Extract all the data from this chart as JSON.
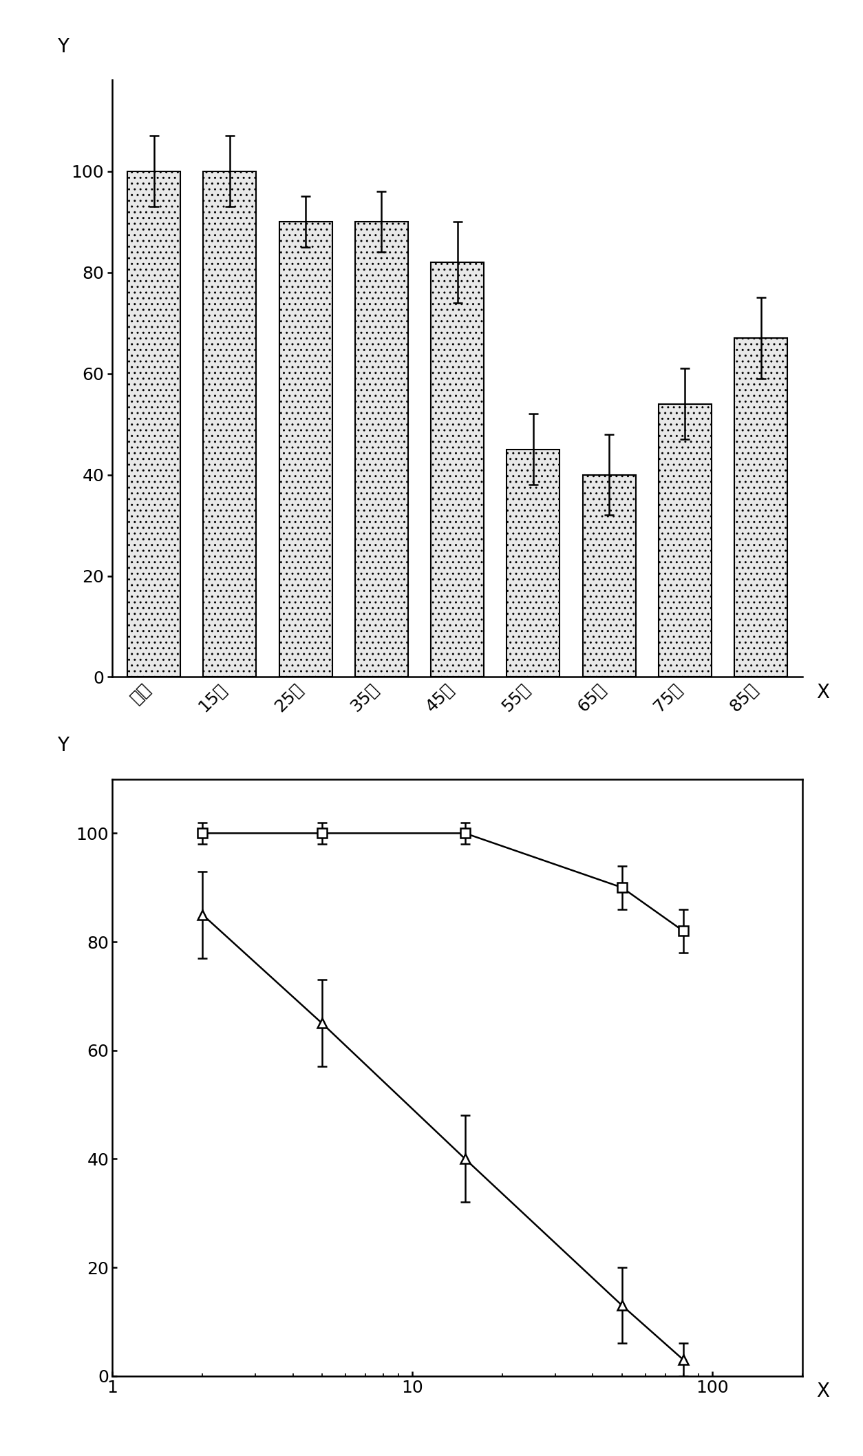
{
  "bar_categories": [
    "对照",
    "15履",
    "25履",
    "35履",
    "45履",
    "55履",
    "65履",
    "75履",
    "85履"
  ],
  "bar_values": [
    100,
    100,
    90,
    90,
    82,
    45,
    40,
    54,
    67
  ],
  "bar_errors": [
    7,
    7,
    5,
    6,
    8,
    7,
    8,
    7,
    8
  ],
  "bar_hatch": "..",
  "bar_facecolor": "#e8e8e8",
  "bar_edgecolor": "#000000",
  "line1_x": [
    2,
    5,
    15,
    50,
    80
  ],
  "line1_y": [
    100,
    100,
    100,
    90,
    82
  ],
  "line1_yerr": [
    2,
    2,
    2,
    4,
    4
  ],
  "line2_x": [
    2,
    5,
    15,
    50,
    80
  ],
  "line2_y": [
    85,
    65,
    40,
    13,
    3
  ],
  "line2_yerr": [
    8,
    8,
    8,
    7,
    3
  ],
  "chart1_xlabel": "X",
  "chart1_ylabel": "Y",
  "chart2_xlabel": "X",
  "chart2_ylabel": "Y",
  "yticks1": [
    0,
    20,
    40,
    60,
    80,
    100
  ],
  "yticks2": [
    0,
    20,
    40,
    60,
    80,
    100
  ],
  "bg_color": "#ffffff",
  "line_color": "#000000",
  "marker_size": 10,
  "capsize": 5,
  "bar_width": 0.7,
  "fontsize_tick": 18,
  "fontsize_label": 20
}
